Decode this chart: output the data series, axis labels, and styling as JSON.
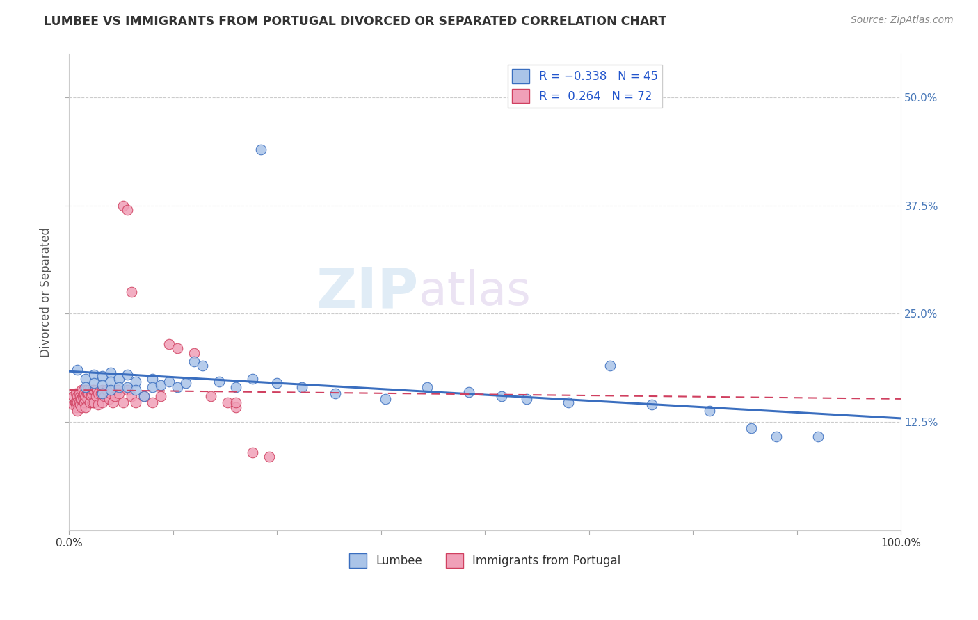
{
  "title": "LUMBEE VS IMMIGRANTS FROM PORTUGAL DIVORCED OR SEPARATED CORRELATION CHART",
  "source_text": "Source: ZipAtlas.com",
  "ylabel": "Divorced or Separated",
  "lumbee_color": "#aac4e8",
  "portugal_color": "#f0a0b8",
  "lumbee_line_color": "#3a6ebf",
  "portugal_line_color": "#d04060",
  "background_color": "#ffffff",
  "xlim": [
    0.0,
    1.0
  ],
  "ylim": [
    0.0,
    0.55
  ],
  "ytick_vals": [
    0.125,
    0.25,
    0.375,
    0.5
  ],
  "ytick_labels": [
    "12.5%",
    "25.0%",
    "37.5%",
    "50.0%"
  ],
  "lumbee_x": [
    0.01,
    0.02,
    0.02,
    0.03,
    0.03,
    0.04,
    0.04,
    0.04,
    0.05,
    0.05,
    0.05,
    0.06,
    0.06,
    0.07,
    0.07,
    0.08,
    0.08,
    0.09,
    0.1,
    0.1,
    0.11,
    0.12,
    0.13,
    0.14,
    0.15,
    0.16,
    0.18,
    0.2,
    0.22,
    0.25,
    0.28,
    0.32,
    0.38,
    0.43,
    0.48,
    0.52,
    0.55,
    0.6,
    0.65,
    0.7,
    0.77,
    0.82,
    0.85,
    0.9,
    0.23
  ],
  "lumbee_y": [
    0.185,
    0.175,
    0.165,
    0.18,
    0.17,
    0.178,
    0.168,
    0.158,
    0.182,
    0.172,
    0.162,
    0.175,
    0.165,
    0.18,
    0.165,
    0.172,
    0.162,
    0.155,
    0.175,
    0.165,
    0.168,
    0.172,
    0.165,
    0.17,
    0.195,
    0.19,
    0.172,
    0.165,
    0.175,
    0.17,
    0.165,
    0.158,
    0.152,
    0.165,
    0.16,
    0.155,
    0.152,
    0.148,
    0.19,
    0.145,
    0.138,
    0.118,
    0.108,
    0.108,
    0.44
  ],
  "portugal_x": [
    0.005,
    0.005,
    0.007,
    0.008,
    0.008,
    0.009,
    0.01,
    0.01,
    0.01,
    0.012,
    0.012,
    0.013,
    0.013,
    0.014,
    0.015,
    0.015,
    0.015,
    0.016,
    0.017,
    0.017,
    0.018,
    0.018,
    0.019,
    0.02,
    0.02,
    0.02,
    0.021,
    0.022,
    0.022,
    0.023,
    0.025,
    0.025,
    0.026,
    0.027,
    0.028,
    0.028,
    0.03,
    0.03,
    0.032,
    0.033,
    0.035,
    0.035,
    0.038,
    0.04,
    0.04,
    0.042,
    0.045,
    0.048,
    0.05,
    0.052,
    0.055,
    0.058,
    0.06,
    0.065,
    0.07,
    0.075,
    0.08,
    0.09,
    0.1,
    0.11,
    0.12,
    0.13,
    0.15,
    0.17,
    0.19,
    0.2,
    0.22,
    0.24,
    0.065,
    0.07,
    0.075,
    0.2
  ],
  "portugal_y": [
    0.155,
    0.145,
    0.148,
    0.158,
    0.148,
    0.142,
    0.155,
    0.148,
    0.138,
    0.158,
    0.148,
    0.155,
    0.145,
    0.152,
    0.162,
    0.152,
    0.142,
    0.155,
    0.162,
    0.152,
    0.158,
    0.148,
    0.152,
    0.162,
    0.155,
    0.142,
    0.158,
    0.162,
    0.152,
    0.158,
    0.162,
    0.148,
    0.155,
    0.158,
    0.162,
    0.148,
    0.162,
    0.148,
    0.155,
    0.162,
    0.158,
    0.145,
    0.158,
    0.162,
    0.148,
    0.155,
    0.162,
    0.152,
    0.158,
    0.148,
    0.155,
    0.162,
    0.158,
    0.148,
    0.162,
    0.155,
    0.148,
    0.155,
    0.148,
    0.155,
    0.215,
    0.21,
    0.205,
    0.155,
    0.148,
    0.142,
    0.09,
    0.085,
    0.375,
    0.37,
    0.275,
    0.148
  ]
}
